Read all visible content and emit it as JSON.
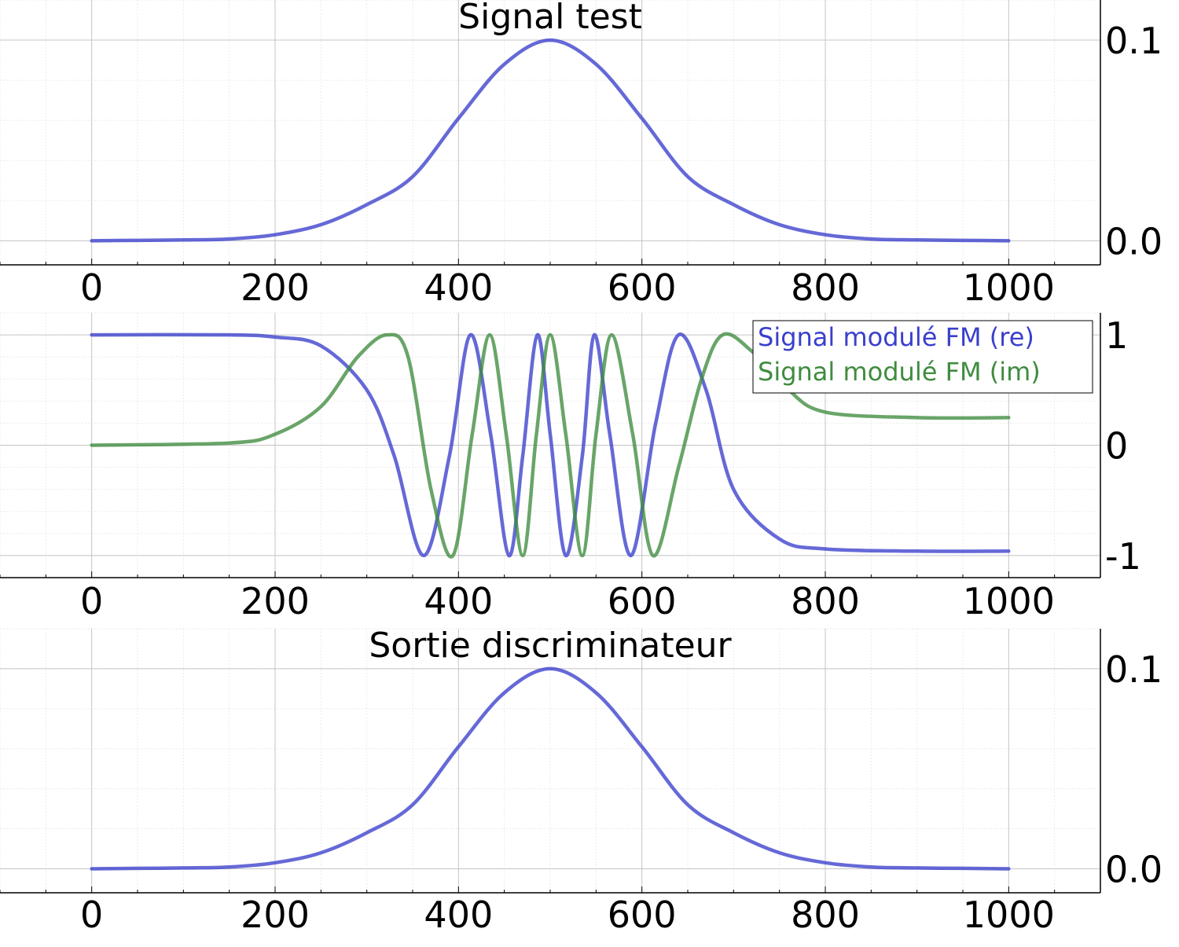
{
  "chart_data": [
    {
      "type": "line",
      "title": "Signal test",
      "xlim": [
        -100,
        1100
      ],
      "ylim": [
        -0.012,
        0.12
      ],
      "x_ticks": [
        0,
        200,
        400,
        600,
        800,
        1000
      ],
      "x_tick_labels": [
        "0",
        "200",
        "400",
        "600",
        "800",
        "1000"
      ],
      "y_ticks": [
        0.0,
        0.1
      ],
      "y_tick_labels": [
        "0.0",
        "0.1"
      ],
      "grid": true,
      "y_axis_side": "right",
      "series": [
        {
          "color": "#3a3fcc",
          "x": [
            0,
            50,
            100,
            150,
            200,
            250,
            300,
            350,
            400,
            450,
            500,
            550,
            600,
            650,
            700,
            750,
            800,
            850,
            900,
            950,
            1000
          ],
          "y": [
            0.0,
            0.0002,
            0.0004,
            0.0009,
            0.003,
            0.008,
            0.018,
            0.032,
            0.061,
            0.088,
            0.1,
            0.088,
            0.061,
            0.032,
            0.018,
            0.008,
            0.003,
            0.0009,
            0.0004,
            0.0002,
            0.0
          ]
        }
      ]
    },
    {
      "type": "line",
      "title": "",
      "xlim": [
        -100,
        1100
      ],
      "ylim": [
        -1.2,
        1.2
      ],
      "x_ticks": [
        0,
        200,
        400,
        600,
        800,
        1000
      ],
      "x_tick_labels": [
        "0",
        "200",
        "400",
        "600",
        "800",
        "1000"
      ],
      "y_ticks": [
        -1,
        0,
        1
      ],
      "y_tick_labels": [
        "-1",
        "0",
        "1"
      ],
      "grid": true,
      "y_axis_side": "right",
      "legend_position": "top-right",
      "series": [
        {
          "name": "Signal modulé FM (re)",
          "color": "#3a3fcc",
          "x": [
            0,
            150,
            200,
            250,
            300,
            330,
            362,
            390,
            413,
            435,
            455,
            470,
            486,
            500,
            517,
            535,
            548,
            565,
            588,
            615,
            640,
            670,
            700,
            750,
            800,
            900,
            1000
          ],
          "y": [
            1,
            1,
            0.98,
            0.9,
            0.5,
            -0.1,
            -1,
            -0.1,
            1,
            0.1,
            -1,
            -0.1,
            1,
            0.1,
            -1,
            -0.1,
            1,
            0.1,
            -1,
            0.2,
            1,
            0.5,
            -0.4,
            -0.85,
            -0.94,
            -0.96,
            -0.96
          ]
        },
        {
          "name": "Signal modulé FM (im)",
          "color": "#3f8c3f",
          "x": [
            0,
            150,
            200,
            250,
            290,
            322,
            345,
            370,
            394,
            415,
            434,
            452,
            470,
            485,
            500,
            517,
            535,
            550,
            567,
            590,
            612,
            640,
            665,
            688,
            720,
            760,
            800,
            900,
            1000
          ],
          "y": [
            0,
            0.02,
            0.1,
            0.35,
            0.8,
            1,
            0.8,
            -0.4,
            -1,
            0.1,
            1,
            0.1,
            -1,
            0.1,
            1,
            0.1,
            -1,
            0.1,
            1,
            0.1,
            -1,
            -0.2,
            0.6,
            1,
            0.85,
            0.5,
            0.3,
            0.25,
            0.25
          ]
        }
      ]
    },
    {
      "type": "line",
      "title": "Sortie discriminateur",
      "xlim": [
        -100,
        1100
      ],
      "ylim": [
        -0.012,
        0.12
      ],
      "x_ticks": [
        0,
        200,
        400,
        600,
        800,
        1000
      ],
      "x_tick_labels": [
        "0",
        "200",
        "400",
        "600",
        "800",
        "1000"
      ],
      "y_ticks": [
        0.0,
        0.1
      ],
      "y_tick_labels": [
        "0.0",
        "0.1"
      ],
      "grid": true,
      "y_axis_side": "right",
      "series": [
        {
          "color": "#3a3fcc",
          "x": [
            0,
            50,
            100,
            150,
            200,
            250,
            300,
            350,
            400,
            450,
            500,
            550,
            600,
            650,
            700,
            750,
            800,
            850,
            900,
            950,
            1000
          ],
          "y": [
            0.0,
            0.0002,
            0.0004,
            0.0009,
            0.003,
            0.008,
            0.018,
            0.032,
            0.061,
            0.088,
            0.1,
            0.088,
            0.061,
            0.032,
            0.018,
            0.008,
            0.003,
            0.0009,
            0.0004,
            0.0002,
            0.0
          ]
        }
      ]
    }
  ]
}
